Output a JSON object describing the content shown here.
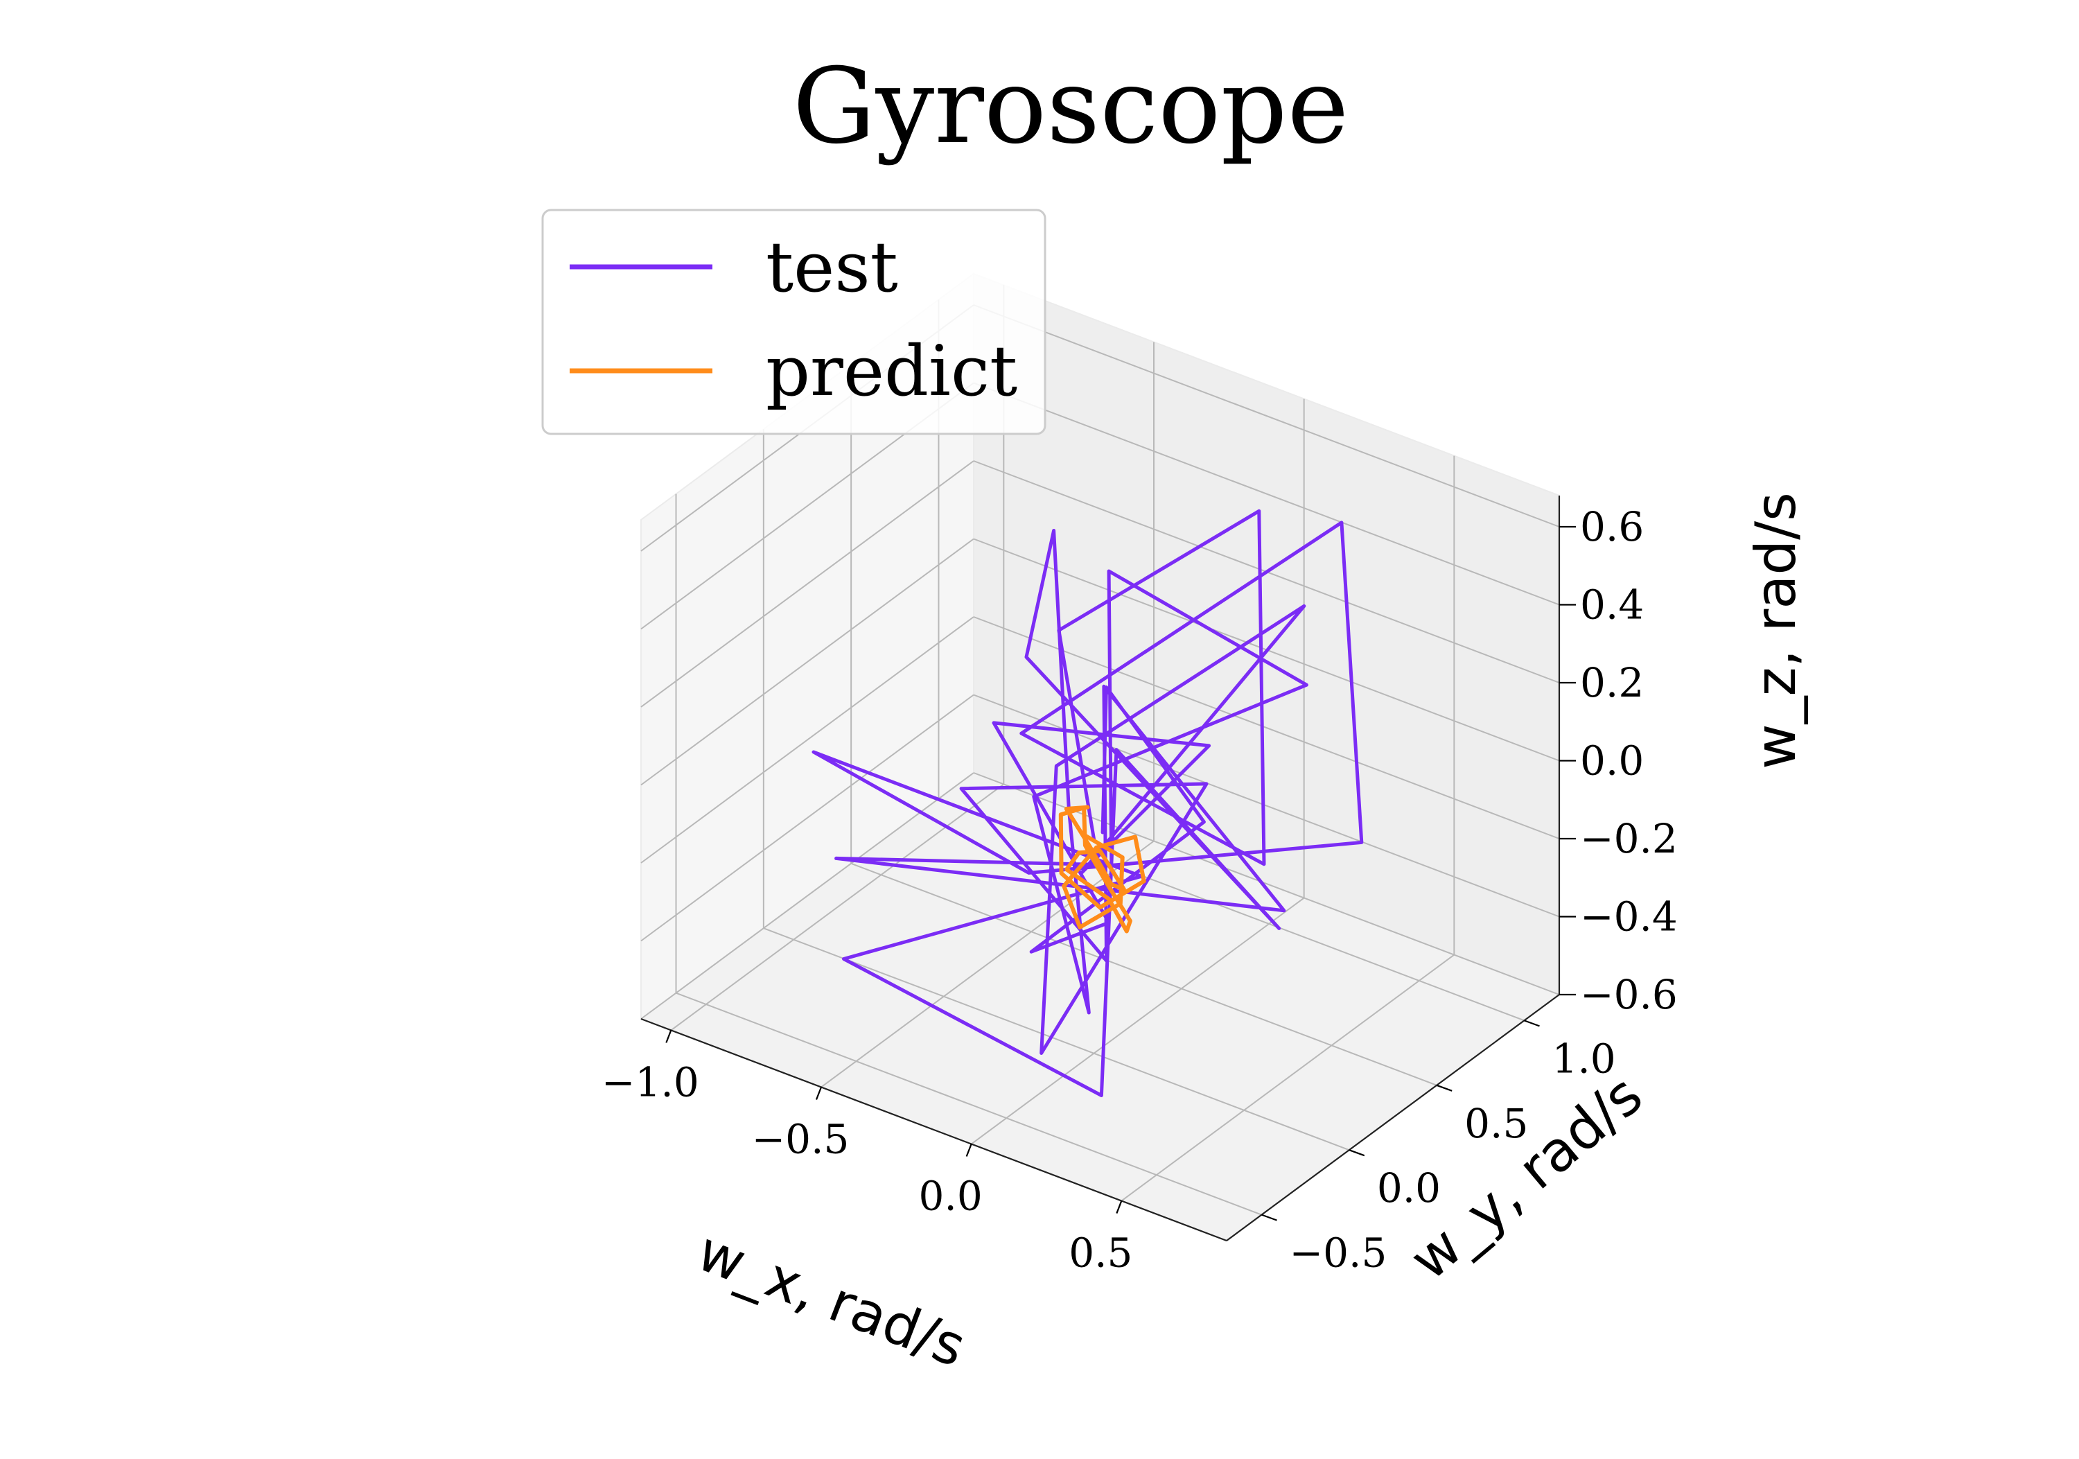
{
  "chart_data": {
    "type": "line",
    "projection": "3d",
    "title": "Gyroscope",
    "xlabel": "w_x, rad/s",
    "ylabel": "w_y, rad/s",
    "zlabel": "w_z, rad/s",
    "xlim": [
      -1.1,
      0.85
    ],
    "ylim": [
      -0.7,
      1.2
    ],
    "zlim": [
      -0.6,
      0.68
    ],
    "xticks": [
      "−1.0",
      "−0.5",
      "0.0",
      "0.5"
    ],
    "yticks": [
      "−0.5",
      "0.0",
      "0.5",
      "1.0"
    ],
    "zticks": [
      "−0.6",
      "−0.4",
      "−0.2",
      "0.0",
      "0.2",
      "0.4",
      "0.6"
    ],
    "grid": true,
    "legend_position": "top-left",
    "series": [
      {
        "name": "test",
        "color": "#7b2cf5",
        "points": [
          [
            0.0,
            0.0,
            -0.05
          ],
          [
            -0.35,
            0.4,
            0.25
          ],
          [
            0.2,
            0.6,
            0.65
          ],
          [
            0.45,
            0.2,
            -0.05
          ],
          [
            -0.3,
            0.1,
            0.1
          ],
          [
            0.3,
            0.9,
            0.55
          ],
          [
            0.6,
            0.5,
            -0.05
          ],
          [
            -0.1,
            -0.2,
            -0.1
          ],
          [
            -1.05,
            0.2,
            -0.2
          ],
          [
            0.1,
            0.1,
            -0.15
          ],
          [
            -0.6,
            -0.4,
            -0.4
          ],
          [
            0.2,
            -0.3,
            -0.55
          ],
          [
            -0.1,
            0.3,
            0.05
          ],
          [
            0.5,
            0.2,
            -0.2
          ],
          [
            -0.4,
            0.3,
            0.2
          ],
          [
            -0.6,
            0.8,
            0.3
          ],
          [
            -0.2,
            0.2,
            -0.1
          ],
          [
            0.1,
            -0.2,
            -0.4
          ],
          [
            -0.2,
            0.0,
            0.0
          ],
          [
            0.3,
            0.7,
            0.2
          ],
          [
            -0.3,
            0.6,
            0.35
          ],
          [
            0.0,
            0.1,
            -0.15
          ],
          [
            -0.8,
            -0.1,
            -0.3
          ],
          [
            0.4,
            0.4,
            -0.25
          ],
          [
            -0.2,
            0.4,
            0.15
          ],
          [
            0.1,
            -0.1,
            -0.3
          ],
          [
            -0.5,
            0.1,
            -0.1
          ],
          [
            0.2,
            0.3,
            0.05
          ],
          [
            0.0,
            -0.3,
            -0.5
          ],
          [
            -0.3,
            0.3,
            -0.05
          ],
          [
            0.35,
            0.6,
            0.45
          ],
          [
            -0.1,
            0.1,
            -0.2
          ],
          [
            0.15,
            0.4,
            0.1
          ],
          [
            -0.45,
            0.2,
            0.05
          ],
          [
            0.05,
            0.0,
            -0.25
          ],
          [
            -0.15,
            -0.1,
            -0.35
          ],
          [
            0.25,
            0.2,
            0.0
          ],
          [
            -0.25,
            0.5,
            0.1
          ],
          [
            0.0,
            0.05,
            -0.05
          ]
        ]
      },
      {
        "name": "predict",
        "color": "#ff8c1a",
        "points": [
          [
            -0.05,
            0.05,
            0.0
          ],
          [
            -0.15,
            0.1,
            -0.05
          ],
          [
            -0.1,
            0.15,
            -0.15
          ],
          [
            0.0,
            0.1,
            -0.2
          ],
          [
            0.1,
            0.0,
            -0.15
          ],
          [
            0.05,
            -0.05,
            -0.05
          ],
          [
            -0.05,
            0.0,
            -0.1
          ],
          [
            -0.12,
            0.05,
            -0.18
          ],
          [
            -0.02,
            0.12,
            -0.25
          ],
          [
            0.08,
            0.05,
            -0.28
          ],
          [
            0.15,
            -0.05,
            -0.2
          ],
          [
            0.1,
            -0.1,
            -0.1
          ],
          [
            0.0,
            -0.05,
            -0.05
          ],
          [
            -0.08,
            0.08,
            -0.02
          ],
          [
            -0.18,
            0.12,
            -0.08
          ],
          [
            -0.12,
            0.02,
            -0.18
          ],
          [
            0.02,
            0.0,
            -0.22
          ],
          [
            0.12,
            0.08,
            -0.15
          ],
          [
            0.05,
            0.15,
            -0.08
          ],
          [
            -0.05,
            0.1,
            -0.12
          ],
          [
            -0.1,
            0.0,
            -0.2
          ],
          [
            0.0,
            -0.08,
            -0.25
          ],
          [
            0.1,
            -0.02,
            -0.18
          ],
          [
            0.06,
            0.06,
            -0.1
          ],
          [
            -0.04,
            0.02,
            -0.06
          ]
        ]
      }
    ]
  }
}
